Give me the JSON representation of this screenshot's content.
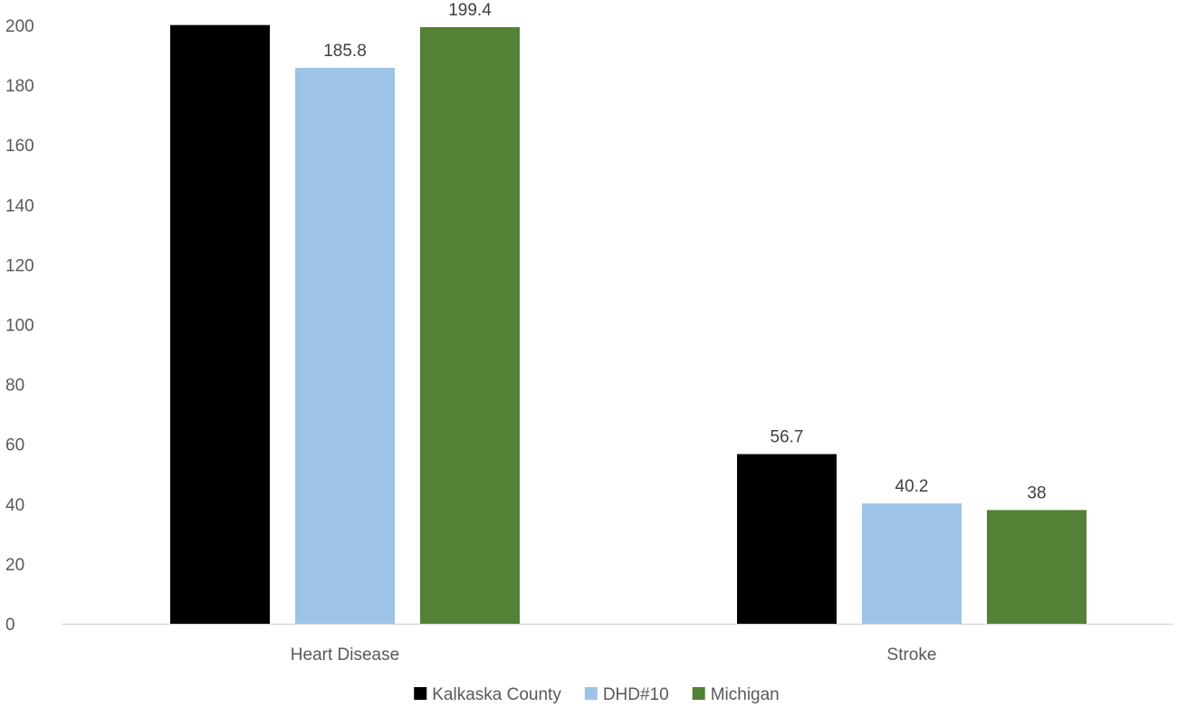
{
  "chart_data": {
    "type": "bar",
    "title": "",
    "xlabel": "",
    "ylabel": "",
    "categories": [
      "Heart Disease",
      "Stroke"
    ],
    "series": [
      {
        "name": "Kalkaska County",
        "values": [
          200.1,
          56.7
        ],
        "color": "#000000",
        "labels": [
          "",
          "56.7"
        ]
      },
      {
        "name": "DHD#10",
        "values": [
          185.8,
          40.2
        ],
        "color": "#9DC3E6",
        "labels": [
          "185.8",
          "40.2"
        ]
      },
      {
        "name": "Michigan",
        "values": [
          199.4,
          38
        ],
        "color": "#538135",
        "labels": [
          "199.4",
          "38"
        ]
      }
    ],
    "ylim": [
      0,
      200
    ],
    "yticks": [
      "0",
      "20",
      "40",
      "60",
      "80",
      "100",
      "120",
      "140",
      "160",
      "180",
      "200"
    ],
    "grid": false,
    "legend_position": "bottom",
    "axis_color": "#D9D9D9"
  }
}
